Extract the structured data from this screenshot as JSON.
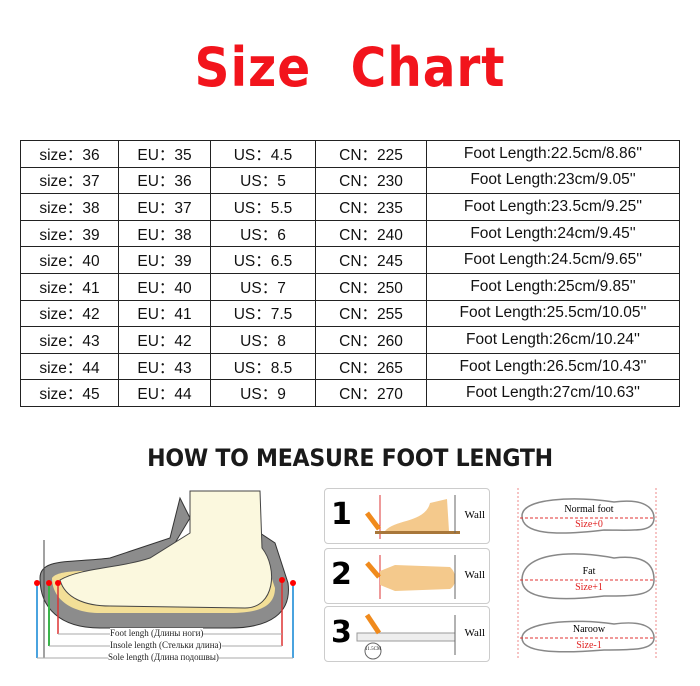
{
  "title": {
    "word1": "Size",
    "word2": "Chart"
  },
  "table": {
    "rows": [
      [
        "size：36",
        "EU：35",
        "US：4.5",
        "CN：225",
        "Foot Length:22.5cm/8.86''"
      ],
      [
        "size：37",
        "EU：36",
        "US：5",
        "CN：230",
        "Foot Length:23cm/9.05''"
      ],
      [
        "size：38",
        "EU：37",
        "US：5.5",
        "CN：235",
        "Foot Length:23.5cm/9.25''"
      ],
      [
        "size：39",
        "EU：38",
        "US：6",
        "CN：240",
        "Foot Length:24cm/9.45''"
      ],
      [
        "size：40",
        "EU：39",
        "US：6.5",
        "CN：245",
        "Foot Length:24.5cm/9.65''"
      ],
      [
        "size：41",
        "EU：40",
        "US：7",
        "CN：250",
        "Foot Length:25cm/9.85''"
      ],
      [
        "size：42",
        "EU：41",
        "US：7.5",
        "CN：255",
        "Foot Length:25.5cm/10.05''"
      ],
      [
        "size：43",
        "EU：42",
        "US：8",
        "CN：260",
        "Foot Length:26cm/10.24''"
      ],
      [
        "size：44",
        "EU：43",
        "US：8.5",
        "CN：265",
        "Foot Length:26.5cm/10.43''"
      ],
      [
        "size：45",
        "EU：44",
        "US：9",
        "CN：270",
        "Foot Length:27cm/10.63''"
      ]
    ]
  },
  "how_to": "HOW TO MEASURE FOOT LENGTH",
  "shoe": {
    "foot": "Foot lengh (Длины ноги)",
    "insole": "Insole length (Стельки длина)",
    "sole": "Sole length (Длина подошвы)"
  },
  "steps": [
    {
      "num": "1",
      "wall": "Wall"
    },
    {
      "num": "2",
      "wall": "Wall"
    },
    {
      "num": "3",
      "wall": "Wall",
      "ruler": "11.5CM"
    }
  ],
  "feet": [
    {
      "type": "Normal foot",
      "size": "Size+0"
    },
    {
      "type": "Fat",
      "size": "Size+1"
    },
    {
      "type": "Naroow",
      "size": "Size-1"
    }
  ],
  "colors": {
    "title": "#f2141c",
    "accent_red": "#e02020"
  }
}
